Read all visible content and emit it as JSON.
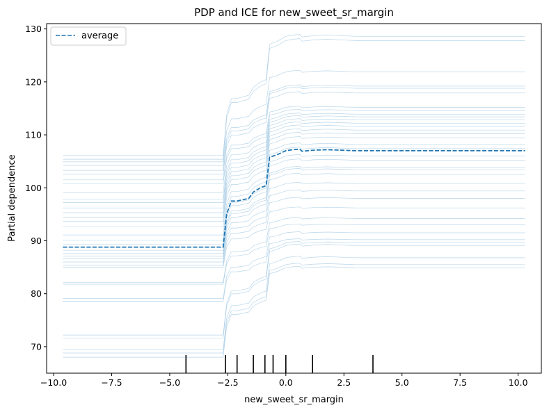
{
  "chart_data": {
    "type": "line",
    "title": "PDP and ICE for new_sweet_sr_margin",
    "xlabel": "new_sweet_sr_margin",
    "ylabel": "Partial dependence",
    "xlim": [
      -10.3,
      11.0
    ],
    "ylim": [
      65.0,
      131.0
    ],
    "xticks": [
      -10.0,
      -7.5,
      -5.0,
      -2.5,
      0.0,
      2.5,
      5.0,
      7.5,
      10.0
    ],
    "xtick_labels": [
      "−10.0",
      "−7.5",
      "−5.0",
      "−2.5",
      "0.0",
      "2.5",
      "5.0",
      "7.5",
      "10.0"
    ],
    "yticks": [
      70,
      80,
      90,
      100,
      110,
      120,
      130
    ],
    "ytick_labels": [
      "70",
      "80",
      "90",
      "100",
      "110",
      "120",
      "130"
    ],
    "grid": false,
    "legend": {
      "position": "top-left",
      "entries": [
        "average"
      ]
    },
    "colors": {
      "average": "#1f77b4",
      "ice": "#7fb5d8"
    },
    "series": [
      {
        "name": "average",
        "style": "dashed",
        "x": [
          -9.6,
          -2.7,
          -2.55,
          -2.35,
          -2.1,
          -1.6,
          -1.4,
          -1.1,
          -0.85,
          -0.7,
          -0.4,
          0.0,
          0.3,
          0.6,
          0.7,
          1.2,
          1.8,
          3.0,
          10.3
        ],
        "y": [
          88.8,
          88.8,
          95.0,
          97.5,
          97.5,
          98.0,
          99.2,
          100.0,
          100.4,
          105.8,
          106.2,
          107.0,
          107.2,
          107.3,
          106.9,
          107.1,
          107.2,
          107.0,
          107.0
        ]
      }
    ],
    "ice_lines": {
      "x": [
        -9.6,
        -2.7,
        -2.55,
        -2.35,
        -2.1,
        -1.6,
        -1.4,
        -1.1,
        -0.85,
        -0.7,
        -0.4,
        0.0,
        0.3,
        0.6,
        0.7,
        1.2,
        1.8,
        3.0,
        10.3
      ],
      "baselines": [
        68.0,
        68.8,
        69.5,
        71.6,
        72.2,
        78.6,
        79.1,
        81.8,
        82.1,
        85.0,
        85.4,
        86.0,
        86.6,
        87.1,
        87.6,
        88.2,
        88.8,
        89.3,
        90.1,
        91.1,
        92.6,
        93.7,
        94.4,
        95.3,
        96.2,
        97.2,
        97.9,
        99.2,
        100.8,
        101.5,
        102.6,
        103.3,
        104.2,
        104.9,
        105.4,
        106.1
      ],
      "finals": [
        84.9,
        85.5,
        86.8,
        89.1,
        89.6,
        90.2,
        91.5,
        93.0,
        94.2,
        96.2,
        98.0,
        99.4,
        100.8,
        102.5,
        103.4,
        103.8,
        105.2,
        106.0,
        107.4,
        108.2,
        109.4,
        110.2,
        110.9,
        111.6,
        112.2,
        112.8,
        113.4,
        113.9,
        114.6,
        115.2,
        117.9,
        118.8,
        119.2,
        121.9,
        127.8,
        128.6
      ]
    },
    "rug_x": [
      -4.3,
      -2.6,
      -2.1,
      -1.4,
      -0.9,
      -0.55,
      0.0,
      1.15,
      3.75
    ]
  }
}
